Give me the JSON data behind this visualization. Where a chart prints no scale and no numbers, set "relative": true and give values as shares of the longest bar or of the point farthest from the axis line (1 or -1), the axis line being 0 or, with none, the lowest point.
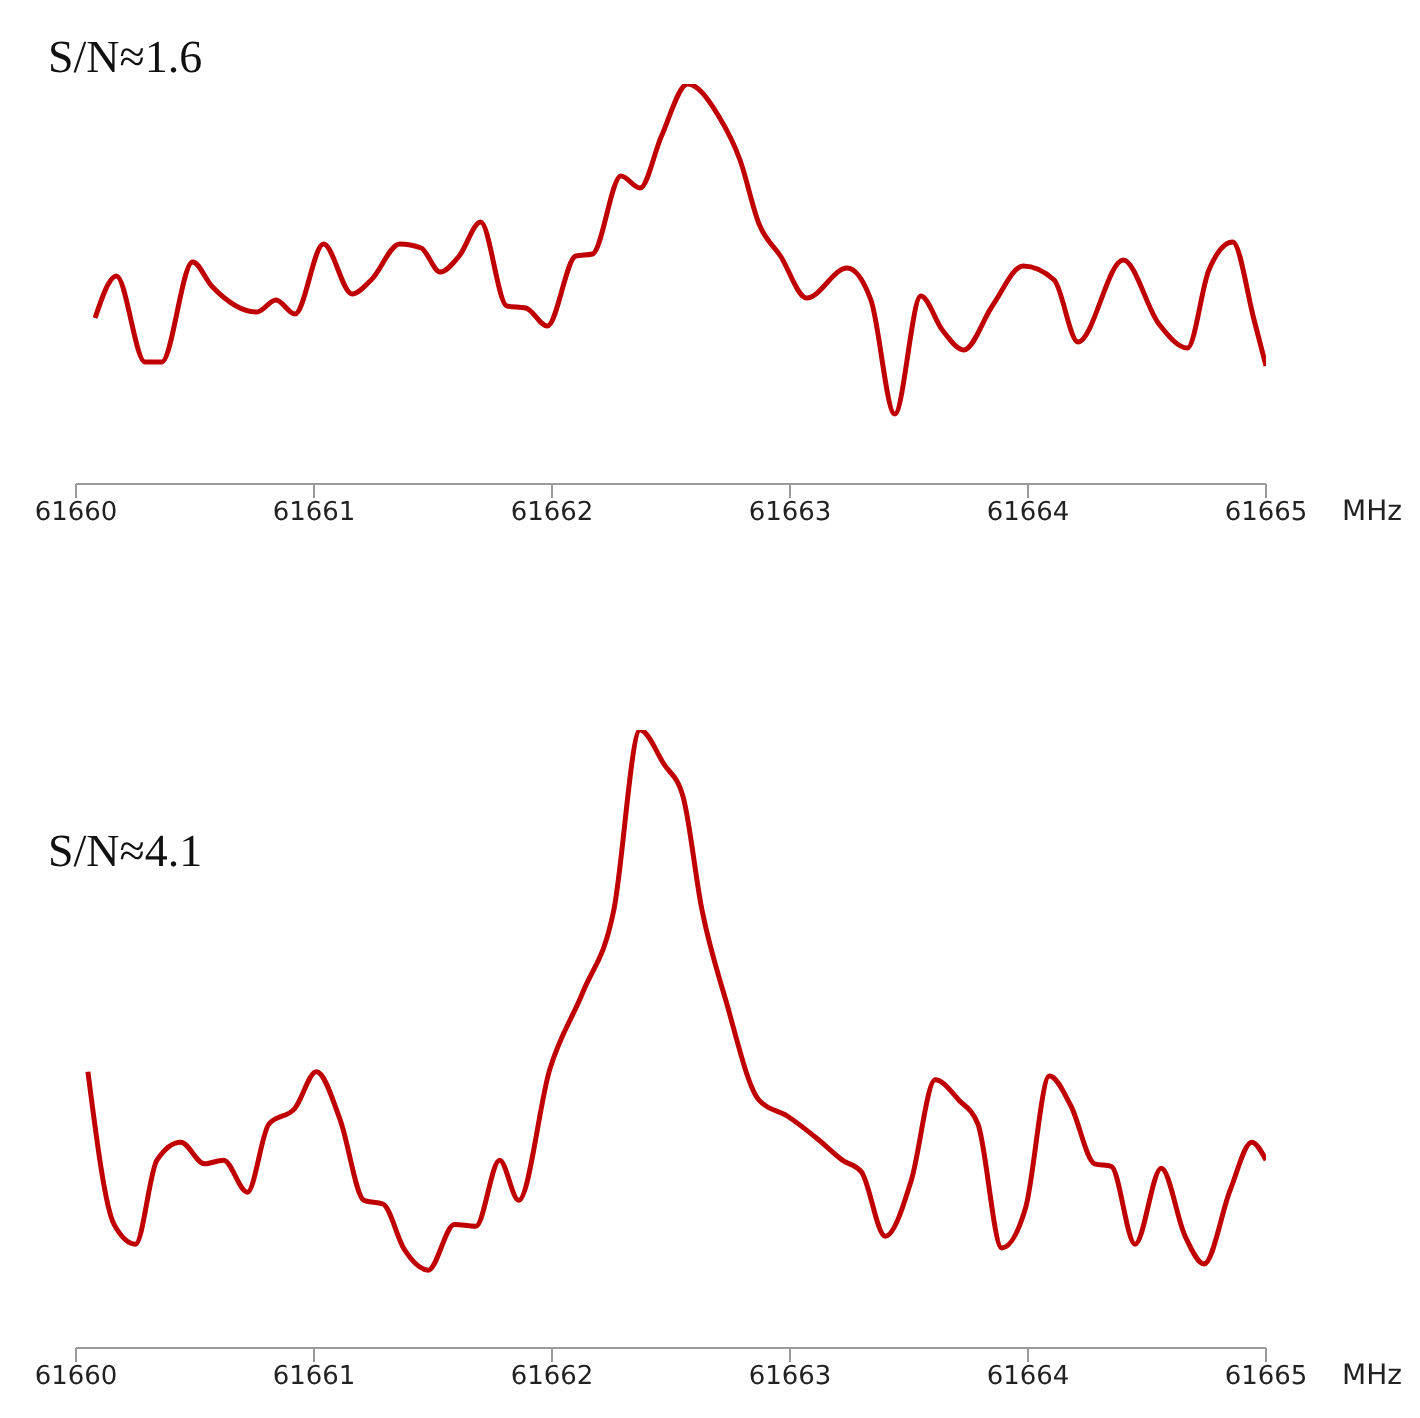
{
  "chart_data": [
    {
      "type": "line",
      "relative": true,
      "xlabel": "MHz",
      "annotations": [
        "S/N≈1.6"
      ],
      "xlim": [
        61660,
        61665
      ],
      "xticks": [
        61660,
        61661,
        61662,
        61663,
        61664,
        61665
      ],
      "x": [
        61660.08,
        61660.17,
        61660.29,
        61660.36,
        61660.49,
        61660.57,
        61660.76,
        61660.84,
        61660.92,
        61661.04,
        61661.16,
        61661.24,
        61661.36,
        61661.45,
        61661.53,
        61661.61,
        61661.7,
        61661.81,
        61661.89,
        61661.98,
        61662.1,
        61662.17,
        61662.29,
        61662.37,
        61662.46,
        61662.57,
        61662.7,
        61662.79,
        61662.87,
        61662.96,
        61663.07,
        61663.24,
        61663.34,
        61663.44,
        61663.55,
        61663.64,
        61663.73,
        61663.85,
        61663.98,
        61664.11,
        61664.21,
        61664.4,
        61664.55,
        61664.67,
        61664.76,
        61664.86,
        61664.95,
        61665.0
      ],
      "series": [
        {
          "color": "#c00000",
          "values": [
            0.415,
            0.52,
            0.305,
            0.305,
            0.555,
            0.495,
            0.43,
            0.46,
            0.425,
            0.6,
            0.475,
            0.51,
            0.6,
            0.59,
            0.53,
            0.57,
            0.655,
            0.445,
            0.44,
            0.395,
            0.57,
            0.575,
            0.77,
            0.74,
            0.87,
            1.0,
            0.92,
            0.81,
            0.65,
            0.57,
            0.465,
            0.54,
            0.46,
            0.175,
            0.47,
            0.385,
            0.335,
            0.445,
            0.545,
            0.51,
            0.355,
            0.56,
            0.4,
            0.34,
            0.535,
            0.605,
            0.41,
            0.295
          ]
        }
      ]
    },
    {
      "type": "line",
      "relative": true,
      "xlabel": "MHz",
      "annotations": [
        "S/N≈4.1"
      ],
      "xlim": [
        61660,
        61665
      ],
      "xticks": [
        61660,
        61661,
        61662,
        61663,
        61664,
        61665
      ],
      "x": [
        61660.05,
        61660.16,
        61660.25,
        61660.34,
        61660.44,
        61660.54,
        61660.62,
        61660.72,
        61660.81,
        61660.92,
        61661.01,
        61661.11,
        61661.21,
        61661.29,
        61661.38,
        61661.48,
        61661.59,
        61661.68,
        61661.78,
        61661.86,
        61661.99,
        61662.13,
        61662.26,
        61662.37,
        61662.47,
        61662.55,
        61662.63,
        61662.73,
        61662.87,
        61662.99,
        61663.12,
        61663.22,
        61663.3,
        61663.4,
        61663.51,
        61663.61,
        61663.71,
        61663.79,
        61663.89,
        61663.99,
        61664.09,
        61664.18,
        61664.28,
        61664.35,
        61664.45,
        61664.56,
        61664.66,
        61664.74,
        61664.85,
        61664.94,
        61665.0
      ],
      "series": [
        {
          "color": "#c00000",
          "values": [
            0.447,
            0.2,
            0.168,
            0.304,
            0.333,
            0.298,
            0.304,
            0.252,
            0.362,
            0.388,
            0.447,
            0.369,
            0.239,
            0.233,
            0.159,
            0.126,
            0.2,
            0.197,
            0.304,
            0.239,
            0.45,
            0.576,
            0.709,
            1.0,
            0.945,
            0.893,
            0.709,
            0.563,
            0.401,
            0.375,
            0.337,
            0.304,
            0.285,
            0.181,
            0.272,
            0.434,
            0.401,
            0.362,
            0.162,
            0.227,
            0.44,
            0.392,
            0.298,
            0.294,
            0.168,
            0.291,
            0.181,
            0.136,
            0.256,
            0.333,
            0.304
          ]
        }
      ]
    }
  ]
}
